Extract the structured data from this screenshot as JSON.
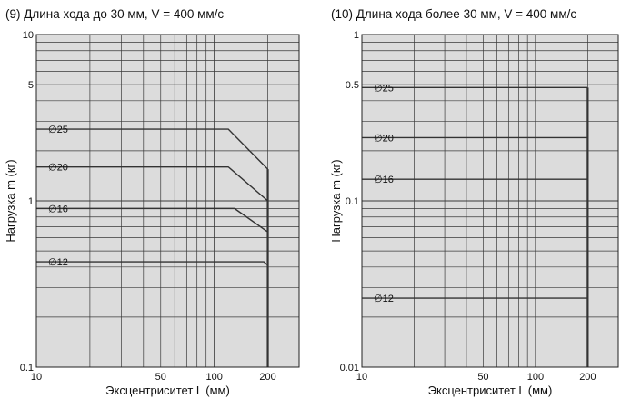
{
  "chart_data": [
    {
      "type": "line",
      "title": "(9) Длина хода до 30 мм, V = 400 мм/с",
      "xlabel": "Эксцентриситет L (мм)",
      "ylabel": "Нагрузка m (кг)",
      "x_scale": "log",
      "y_scale": "log",
      "xlim": [
        10,
        300
      ],
      "ylim": [
        0.1,
        10
      ],
      "x_ticks": [
        {
          "value": 10,
          "label": "10"
        },
        {
          "value": 50,
          "label": "50"
        },
        {
          "value": 100,
          "label": "100"
        },
        {
          "value": 200,
          "label": "200"
        }
      ],
      "y_ticks": [
        {
          "value": 0.1,
          "label": "0.1"
        },
        {
          "value": 1,
          "label": "1"
        },
        {
          "value": 5,
          "label": "5"
        },
        {
          "value": 10,
          "label": "10"
        }
      ],
      "grid": true,
      "background": "#dcdcdc",
      "line_color": "#333333",
      "series": [
        {
          "name": "∅25",
          "x": [
            10,
            120,
            200
          ],
          "y": [
            2.7,
            2.7,
            1.55
          ]
        },
        {
          "name": "∅20",
          "x": [
            10,
            120,
            200
          ],
          "y": [
            1.6,
            1.6,
            1.0
          ]
        },
        {
          "name": "∅16",
          "x": [
            10,
            130,
            200
          ],
          "y": [
            0.9,
            0.9,
            0.65
          ]
        },
        {
          "name": "∅12",
          "x": [
            10,
            190,
            200
          ],
          "y": [
            0.43,
            0.43,
            0.41
          ]
        }
      ],
      "vertical_limit": {
        "x": 200,
        "y_from": 0.1
      }
    },
    {
      "type": "line",
      "title": "(10) Длина хода более 30 мм, V = 400 мм/с",
      "xlabel": "Эксцентриситет L (мм)",
      "ylabel": "Нагрузка m (кг)",
      "x_scale": "log",
      "y_scale": "log",
      "xlim": [
        10,
        300
      ],
      "ylim": [
        0.01,
        1
      ],
      "x_ticks": [
        {
          "value": 10,
          "label": "10"
        },
        {
          "value": 50,
          "label": "50"
        },
        {
          "value": 100,
          "label": "100"
        },
        {
          "value": 200,
          "label": "200"
        }
      ],
      "y_ticks": [
        {
          "value": 0.01,
          "label": "0.01"
        },
        {
          "value": 0.1,
          "label": "0.1"
        },
        {
          "value": 0.5,
          "label": "0.5"
        },
        {
          "value": 1,
          "label": "1"
        }
      ],
      "grid": true,
      "background": "#dcdcdc",
      "line_color": "#333333",
      "series": [
        {
          "name": "∅25",
          "x": [
            10,
            200
          ],
          "y": [
            0.48,
            0.48
          ]
        },
        {
          "name": "∅20",
          "x": [
            10,
            200
          ],
          "y": [
            0.24,
            0.24
          ]
        },
        {
          "name": "∅16",
          "x": [
            10,
            200
          ],
          "y": [
            0.135,
            0.135
          ]
        },
        {
          "name": "∅12",
          "x": [
            10,
            200
          ],
          "y": [
            0.026,
            0.026
          ]
        }
      ],
      "vertical_limit": {
        "x": 200,
        "y_from": 0.01
      }
    }
  ]
}
